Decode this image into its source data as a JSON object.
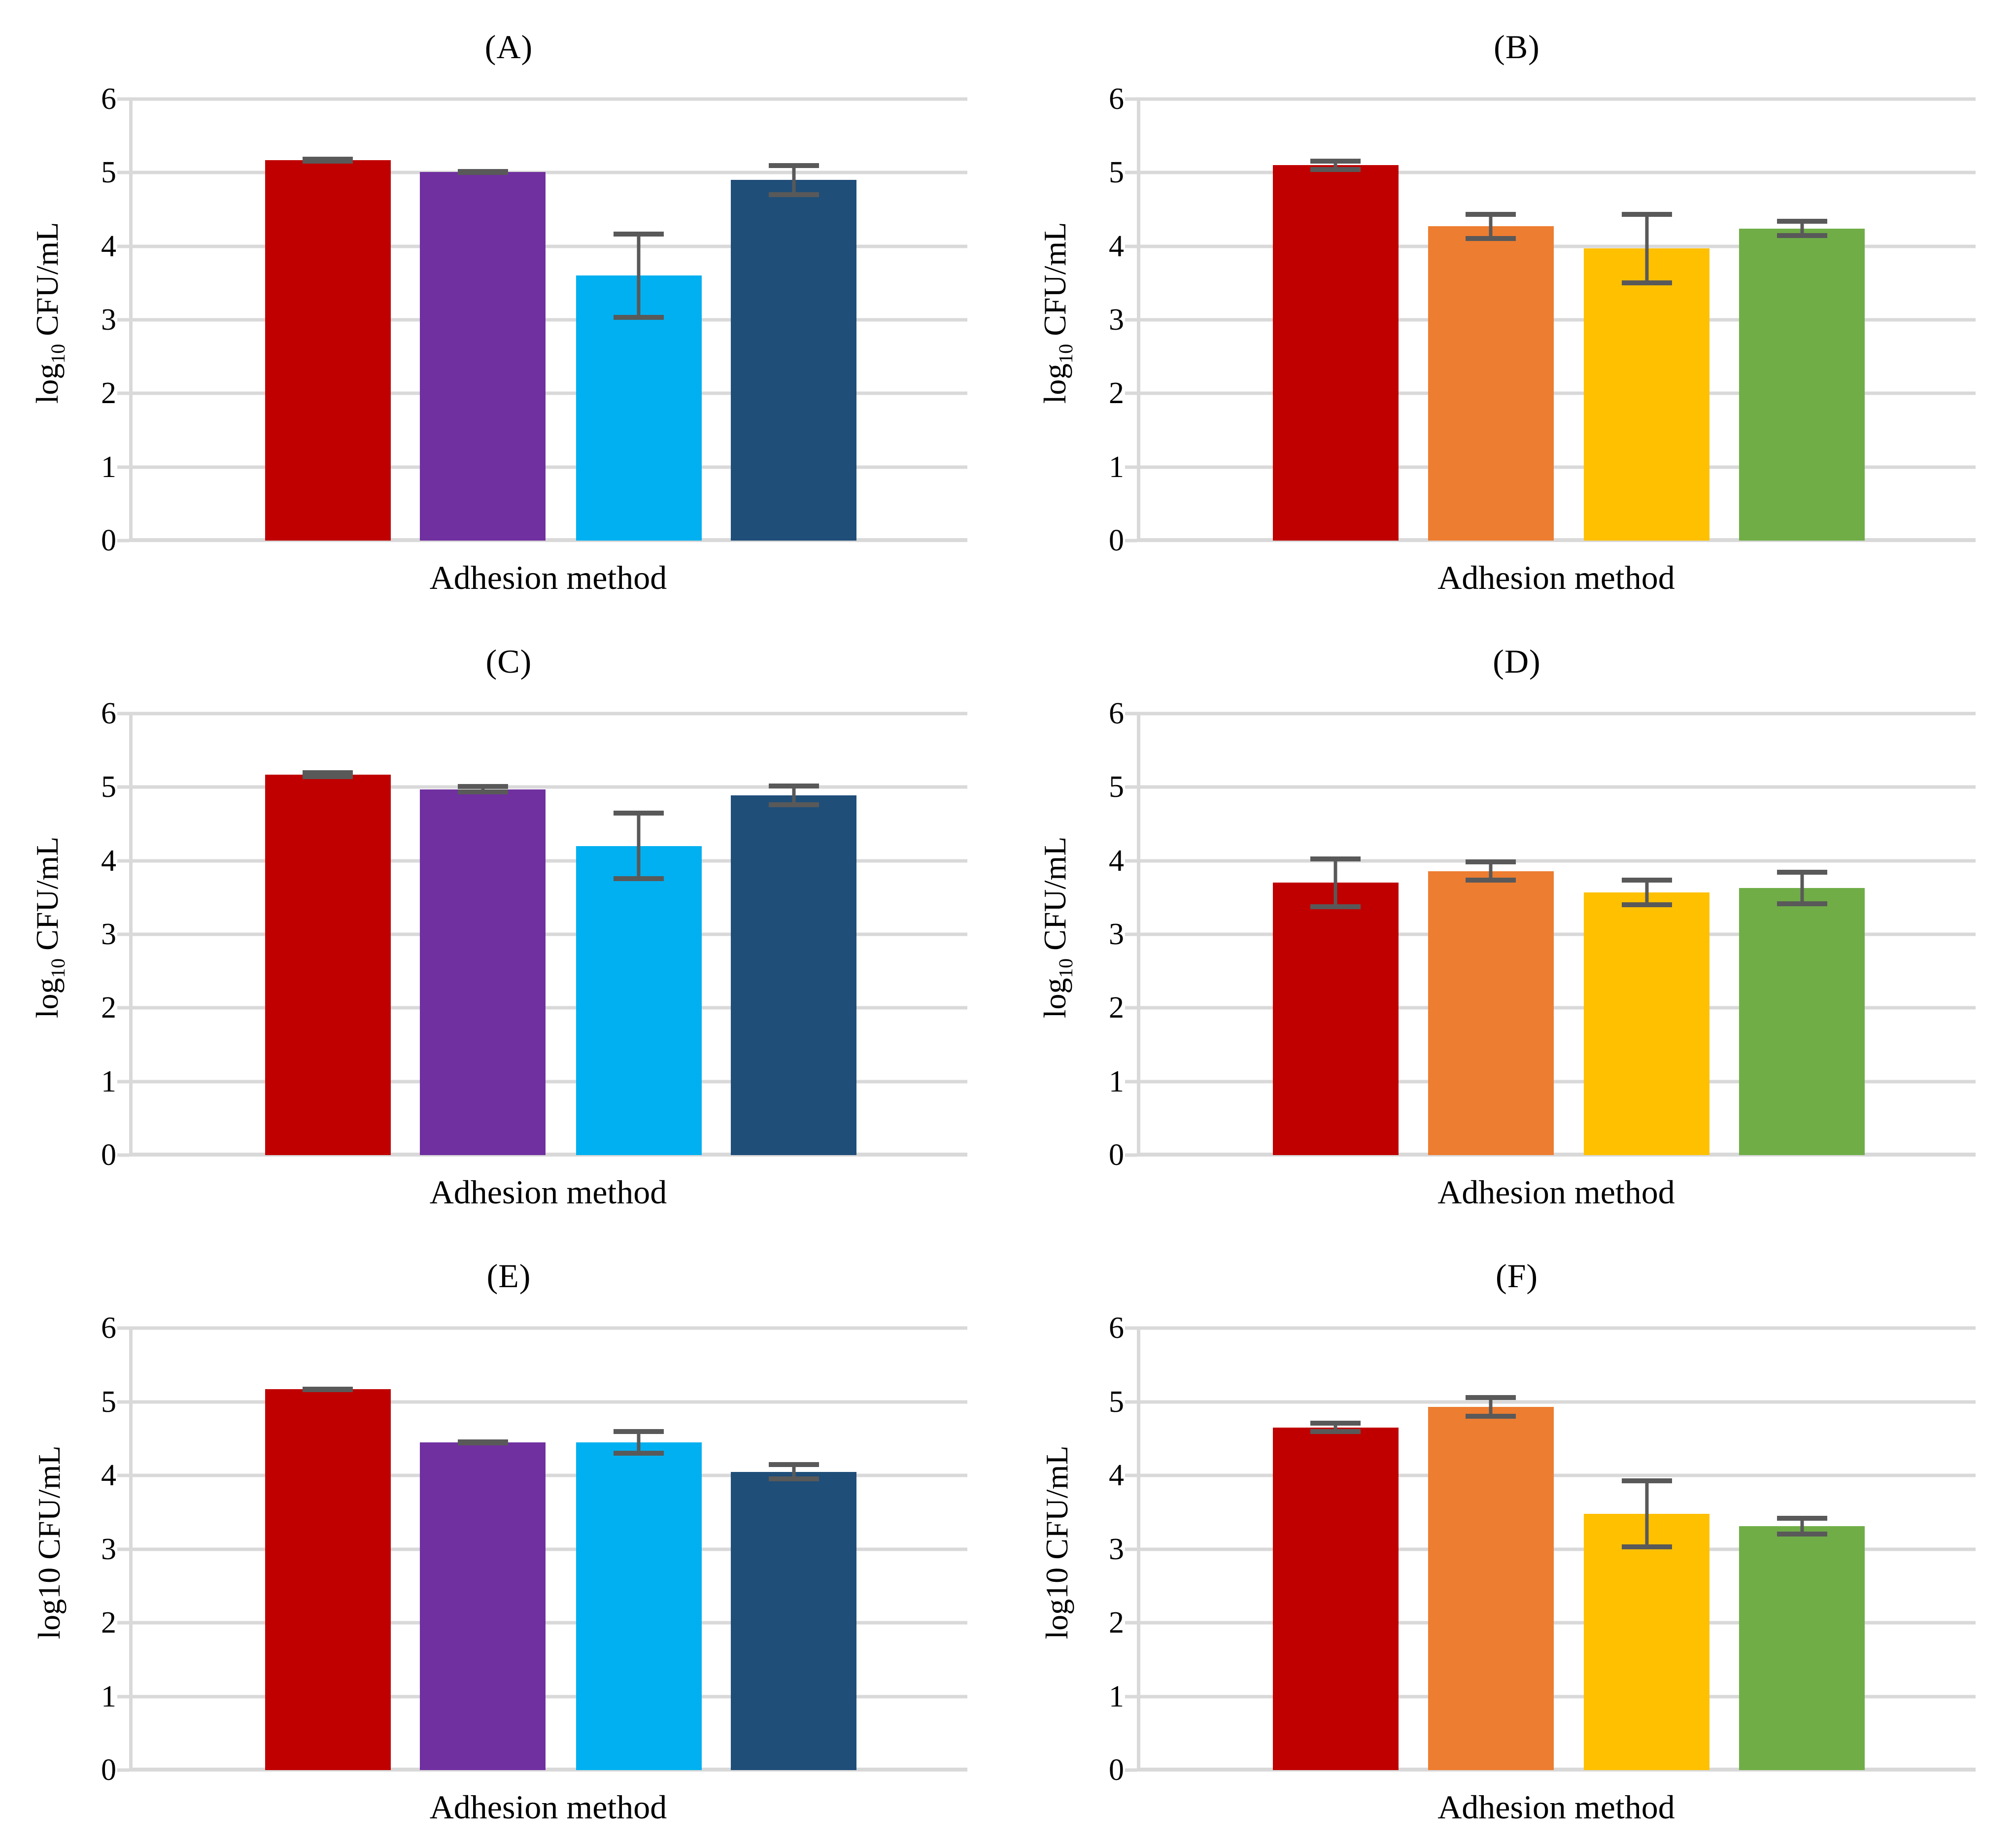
{
  "figure": {
    "background": "#FFFFFF",
    "gridline_color": "#D9D9D9",
    "axis_color": "#D9D9D9",
    "error_bar_color": "#595959",
    "text_color": "#000000"
  },
  "chart_data": [
    {
      "panel": "A",
      "type": "bar",
      "title": "(A)",
      "xlabel": "Adhesion method",
      "ylabel": {
        "pre": "log",
        "sub": "10",
        "post": " CFU/mL",
        "subscript": true
      },
      "ylabel_text": "log10 CFU/mL",
      "ylim": [
        0,
        6
      ],
      "yticks": [
        0,
        1,
        2,
        3,
        4,
        5,
        6
      ],
      "grid": true,
      "legend": "none",
      "series": [
        {
          "color": "#C00000",
          "value": 5.17,
          "error": 0.05
        },
        {
          "color": "#7030A0",
          "value": 5.01,
          "error": 0.04
        },
        {
          "color": "#00B0F0",
          "value": 3.6,
          "error": 0.6
        },
        {
          "color": "#1F4E79",
          "value": 4.9,
          "error": 0.23
        }
      ]
    },
    {
      "panel": "B",
      "type": "bar",
      "title": "(B)",
      "xlabel": "Adhesion method",
      "ylabel": {
        "pre": "log",
        "sub": "10",
        "post": " CFU/mL",
        "subscript": true
      },
      "ylabel_text": "log10 CFU/mL",
      "ylim": [
        0,
        6
      ],
      "yticks": [
        0,
        1,
        2,
        3,
        4,
        5,
        6
      ],
      "grid": true,
      "legend": "none",
      "series": [
        {
          "color": "#C00000",
          "value": 5.1,
          "error": 0.09
        },
        {
          "color": "#ED7D31",
          "value": 4.27,
          "error": 0.2
        },
        {
          "color": "#FFC000",
          "value": 3.97,
          "error": 0.5
        },
        {
          "color": "#70AD47",
          "value": 4.24,
          "error": 0.13
        }
      ]
    },
    {
      "panel": "C",
      "type": "bar",
      "title": "(C)",
      "xlabel": "Adhesion method",
      "ylabel": {
        "pre": "log",
        "sub": "10",
        "post": " CFU/mL",
        "subscript": true
      },
      "ylabel_text": "log10 CFU/mL",
      "ylim": [
        0,
        6
      ],
      "yticks": [
        0,
        1,
        2,
        3,
        4,
        5,
        6
      ],
      "grid": true,
      "legend": "none",
      "series": [
        {
          "color": "#C00000",
          "value": 5.17,
          "error": 0.06
        },
        {
          "color": "#7030A0",
          "value": 4.97,
          "error": 0.07
        },
        {
          "color": "#00B0F0",
          "value": 4.2,
          "error": 0.48
        },
        {
          "color": "#1F4E79",
          "value": 4.89,
          "error": 0.16
        }
      ]
    },
    {
      "panel": "D",
      "type": "bar",
      "title": "(D)",
      "xlabel": "Adhesion method",
      "ylabel": {
        "pre": "log",
        "sub": "10",
        "post": " CFU/mL",
        "subscript": true
      },
      "ylabel_text": "log10 CFU/mL",
      "ylim": [
        0,
        6
      ],
      "yticks": [
        0,
        1,
        2,
        3,
        4,
        5,
        6
      ],
      "grid": true,
      "legend": "none",
      "series": [
        {
          "color": "#C00000",
          "value": 3.7,
          "error": 0.36
        },
        {
          "color": "#ED7D31",
          "value": 3.86,
          "error": 0.16
        },
        {
          "color": "#FFC000",
          "value": 3.57,
          "error": 0.2
        },
        {
          "color": "#70AD47",
          "value": 3.63,
          "error": 0.25
        }
      ]
    },
    {
      "panel": "E",
      "type": "bar",
      "title": "(E)",
      "xlabel": "Adhesion method",
      "ylabel": {
        "pre": "log",
        "sub": "10",
        "post": " CFU/mL",
        "subscript": false
      },
      "ylabel_text": "log10 CFU/mL",
      "ylim": [
        0,
        6
      ],
      "yticks": [
        0,
        1,
        2,
        3,
        4,
        5,
        6
      ],
      "grid": true,
      "legend": "none",
      "series": [
        {
          "color": "#C00000",
          "value": 5.17,
          "error": 0.03
        },
        {
          "color": "#7030A0",
          "value": 4.45,
          "error": 0.04
        },
        {
          "color": "#00B0F0",
          "value": 4.45,
          "error": 0.18
        },
        {
          "color": "#1F4E79",
          "value": 4.05,
          "error": 0.13
        }
      ]
    },
    {
      "panel": "F",
      "type": "bar",
      "title": "(F)",
      "xlabel": "Adhesion method",
      "ylabel": {
        "pre": "log",
        "sub": "10",
        "post": " CFU/mL",
        "subscript": false
      },
      "ylabel_text": "log10 CFU/mL",
      "ylim": [
        0,
        6
      ],
      "yticks": [
        0,
        1,
        2,
        3,
        4,
        5,
        6
      ],
      "grid": true,
      "legend": "none",
      "series": [
        {
          "color": "#C00000",
          "value": 4.65,
          "error": 0.09
        },
        {
          "color": "#ED7D31",
          "value": 4.93,
          "error": 0.16
        },
        {
          "color": "#FFC000",
          "value": 3.48,
          "error": 0.48
        },
        {
          "color": "#70AD47",
          "value": 3.31,
          "error": 0.14
        }
      ]
    }
  ]
}
